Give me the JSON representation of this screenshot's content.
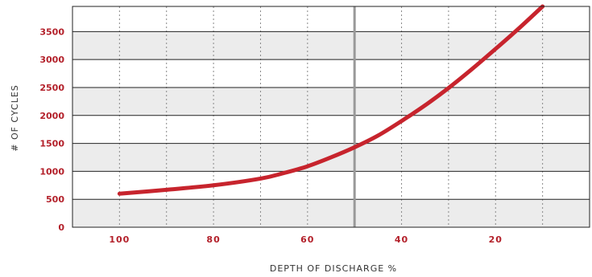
{
  "chart_data": {
    "type": "line",
    "xlabel": "DEPTH OF DISCHARGE %",
    "ylabel": "# OF CYCLES",
    "x_reversed": true,
    "xlim": [
      110,
      0
    ],
    "ylim": [
      0,
      3950
    ],
    "x_ticks": [
      100,
      80,
      60,
      40,
      20
    ],
    "y_ticks": [
      0,
      500,
      1000,
      1500,
      2000,
      2500,
      3000,
      3500
    ],
    "x_tick_labels": [
      "100",
      "80",
      "60",
      "40",
      "20"
    ],
    "y_tick_labels": [
      "0",
      "500",
      "1000",
      "1500",
      "2000",
      "2500",
      "3000",
      "3500"
    ],
    "reference_line_x": 50,
    "grid": true,
    "series": [
      {
        "color": "#c7242d",
        "x": [
          100,
          90,
          80,
          70,
          65,
          60,
          55,
          50,
          45,
          40,
          35,
          30,
          25,
          20,
          15,
          10
        ],
        "y": [
          600,
          670,
          750,
          870,
          970,
          1090,
          1250,
          1430,
          1640,
          1900,
          2180,
          2490,
          2830,
          3190,
          3560,
          3950
        ]
      }
    ],
    "colors": {
      "line": "#c7242d",
      "band": "#ececec",
      "gridline": "#222222",
      "reference_line": "#999999",
      "tick_text": "#b3202a"
    }
  }
}
